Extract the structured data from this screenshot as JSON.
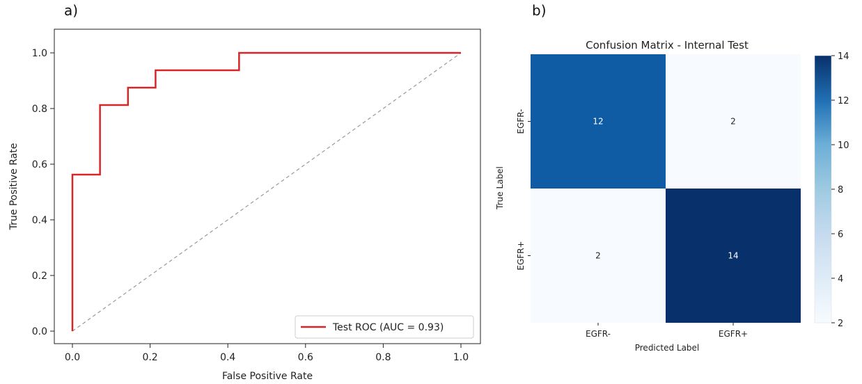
{
  "panels": {
    "a": "a)",
    "b": "b)"
  },
  "chart_data": [
    {
      "type": "line",
      "xlabel": "False Positive Rate",
      "ylabel": "True Positive Rate",
      "xlim": [
        0,
        1
      ],
      "ylim": [
        0,
        1
      ],
      "xticks": [
        0.0,
        0.2,
        0.4,
        0.6,
        0.8,
        1.0
      ],
      "yticks": [
        0.0,
        0.2,
        0.4,
        0.6,
        0.8,
        1.0
      ],
      "xtick_labels": [
        "0.0",
        "0.2",
        "0.4",
        "0.6",
        "0.8",
        "1.0"
      ],
      "ytick_labels": [
        "0.0",
        "0.2",
        "0.4",
        "0.6",
        "0.8",
        "1.0"
      ],
      "grid": false,
      "legend_position": "bottom-right",
      "series": [
        {
          "name": "Test ROC (AUC = 0.93)",
          "color": "#d62728",
          "style": "step",
          "x": [
            0.0,
            0.0,
            0.071,
            0.071,
            0.143,
            0.143,
            0.214,
            0.214,
            0.429,
            0.429,
            1.0
          ],
          "y": [
            0.0,
            0.5625,
            0.5625,
            0.8125,
            0.8125,
            0.875,
            0.875,
            0.9375,
            0.9375,
            1.0,
            1.0
          ]
        },
        {
          "color": "#999999",
          "style": "dashed",
          "x": [
            0,
            1
          ],
          "y": [
            0,
            1
          ]
        }
      ]
    },
    {
      "type": "heatmap",
      "title": "Confusion Matrix - Internal Test",
      "xlabel": "Predicted Label",
      "ylabel": "True Label",
      "x_categories": [
        "EGFR-",
        "EGFR+"
      ],
      "y_categories": [
        "EGFR-",
        "EGFR+"
      ],
      "values": [
        [
          12,
          2
        ],
        [
          2,
          14
        ]
      ],
      "colormap": "Blues",
      "colorbar": {
        "min": 2,
        "max": 14,
        "ticks": [
          2,
          4,
          6,
          8,
          10,
          12,
          14
        ],
        "tick_labels": [
          "2",
          "4",
          "6",
          "8",
          "10",
          "12",
          "14"
        ]
      }
    }
  ]
}
